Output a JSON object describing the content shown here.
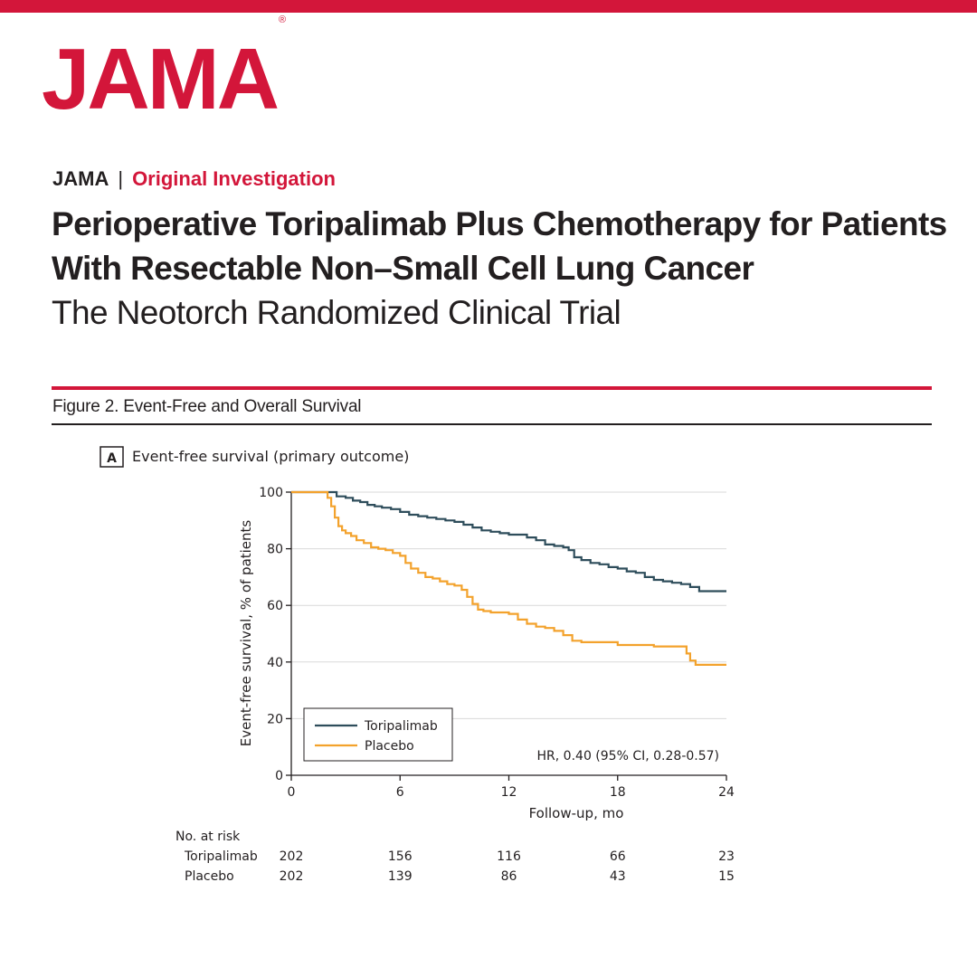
{
  "header": {
    "logo_text": "JAMA",
    "logo_mark": "®",
    "journal": "JAMA",
    "separator": "|",
    "section": "Original Investigation",
    "title_line1": "Perioperative Toripalimab Plus Chemotherapy for Patients",
    "title_line2": "With Resectable Non–Small Cell Lung Cancer",
    "subtitle": "The Neotorch Randomized Clinical Trial",
    "figure_caption": "Figure 2. Event-Free and Overall Survival"
  },
  "colors": {
    "brand_red": "#d3163a",
    "toripalimab": "#2e4d5b",
    "placebo": "#f3a22c",
    "grid": "#d9d9d9"
  },
  "chart_data": {
    "type": "line",
    "panel_label": "A",
    "title": "Event-free survival (primary outcome)",
    "xlabel": "Follow-up, mo",
    "ylabel": "Event-free survival, % of patients",
    "xlim": [
      0,
      24
    ],
    "ylim": [
      0,
      100
    ],
    "xticks": [
      0,
      6,
      12,
      18,
      24
    ],
    "yticks": [
      0,
      20,
      40,
      60,
      80,
      100
    ],
    "grid": "horizontal",
    "legend_position": "bottom-left",
    "annotation": "HR, 0.40 (95% CI, 0.28-0.57)",
    "series": [
      {
        "name": "Toripalimab",
        "color": "#2e4d5b",
        "x": [
          0,
          2.2,
          2.5,
          3.0,
          3.4,
          3.8,
          4.2,
          4.6,
          5.0,
          5.5,
          6.0,
          6.5,
          7.0,
          7.5,
          8.0,
          8.5,
          9.0,
          9.5,
          10.0,
          10.5,
          11.0,
          11.5,
          12.0,
          12.5,
          13.0,
          13.5,
          14.0,
          14.5,
          15.0,
          15.3,
          15.6,
          16.0,
          16.5,
          17.0,
          17.5,
          18.0,
          18.5,
          19.0,
          19.5,
          20.0,
          20.5,
          21.0,
          21.5,
          22.0,
          22.5,
          23.0,
          23.5,
          24.0
        ],
        "y": [
          100,
          100,
          98.5,
          98,
          97,
          96.5,
          95.5,
          95,
          94.5,
          94,
          93,
          92,
          91.5,
          91,
          90.5,
          90,
          89.5,
          88.5,
          87.5,
          86.5,
          86,
          85.5,
          85,
          85,
          84,
          83,
          81.5,
          81,
          80.5,
          79.5,
          77,
          76,
          75,
          74.5,
          73.5,
          73,
          72,
          71.5,
          70,
          69,
          68.5,
          68,
          67.5,
          66.5,
          65,
          65,
          65,
          65
        ]
      },
      {
        "name": "Placebo",
        "color": "#f3a22c",
        "x": [
          0,
          2.0,
          2.2,
          2.4,
          2.6,
          2.8,
          3.0,
          3.3,
          3.6,
          4.0,
          4.4,
          4.8,
          5.2,
          5.6,
          6.0,
          6.3,
          6.6,
          7.0,
          7.4,
          7.8,
          8.2,
          8.6,
          9.0,
          9.4,
          9.7,
          10.0,
          10.3,
          10.6,
          11.0,
          11.5,
          12.0,
          12.5,
          13.0,
          13.5,
          14.0,
          14.5,
          15.0,
          15.5,
          16.0,
          17.0,
          18.0,
          19.0,
          20.0,
          21.0,
          21.6,
          21.8,
          22.0,
          22.3,
          23.0,
          24.0
        ],
        "y": [
          100,
          98,
          95,
          91,
          88,
          86.5,
          85.5,
          84.5,
          83,
          82,
          80.5,
          80,
          79.5,
          78.5,
          77.5,
          75,
          73,
          71.5,
          70,
          69.5,
          68.5,
          67.5,
          67,
          65.5,
          63,
          60.5,
          58.5,
          58,
          57.5,
          57.5,
          57,
          55,
          53.5,
          52.5,
          52,
          51,
          49.5,
          47.5,
          47,
          47,
          46,
          46,
          45.5,
          45.5,
          45.5,
          43,
          40.5,
          39,
          39,
          39
        ]
      }
    ],
    "at_risk": {
      "title": "No. at risk",
      "times": [
        0,
        6,
        12,
        18,
        24
      ],
      "rows": [
        {
          "name": "Toripalimab",
          "values": [
            202,
            156,
            116,
            66,
            23
          ]
        },
        {
          "name": "Placebo",
          "values": [
            202,
            139,
            86,
            43,
            15
          ]
        }
      ]
    }
  }
}
